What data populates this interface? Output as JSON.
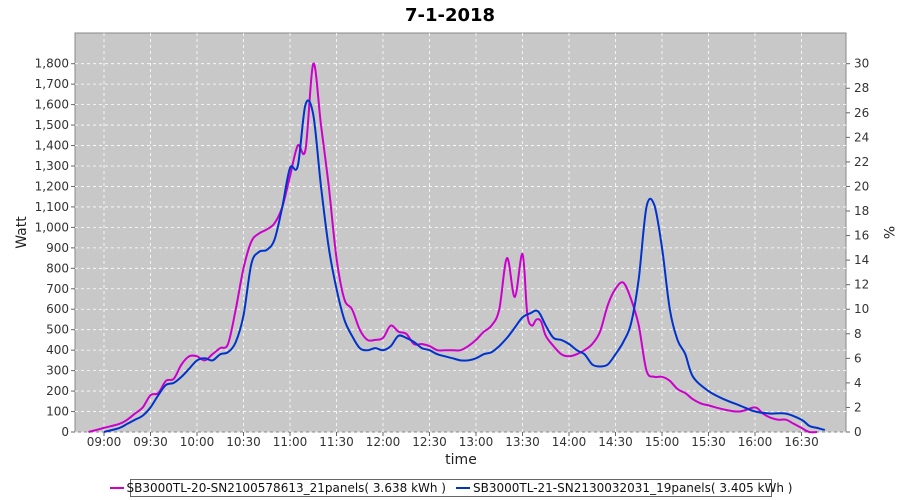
{
  "chart_data": {
    "type": "line",
    "title": "7-1-2018",
    "xlabel": "time",
    "ylabel": "Watt",
    "y2label": "%",
    "ylim": [
      0,
      1950
    ],
    "y2lim": [
      0,
      32.5
    ],
    "x_ticks": [
      "09:00",
      "09:30",
      "10:00",
      "10:30",
      "11:00",
      "11:30",
      "12:00",
      "12:30",
      "13:00",
      "13:30",
      "14:00",
      "14:30",
      "15:00",
      "15:30",
      "16:00",
      "16:30"
    ],
    "y_ticks": [
      0,
      100,
      200,
      300,
      400,
      500,
      600,
      700,
      800,
      900,
      1000,
      1100,
      1200,
      1300,
      1400,
      1500,
      1600,
      1700,
      1800
    ],
    "y_tick_labels": [
      "0",
      "100",
      "200",
      "300",
      "400",
      "500",
      "600",
      "700",
      "800",
      "900",
      "1,000",
      "1,100",
      "1,200",
      "1,300",
      "1,400",
      "1,500",
      "1,600",
      "1,700",
      "1,800"
    ],
    "y2_ticks": [
      "0",
      "2",
      "4",
      "6",
      "8",
      "10",
      "12",
      "14",
      "16",
      "18",
      "20",
      "22",
      "24",
      "26",
      "28",
      "30"
    ],
    "grid": true,
    "legend_position": "bottom",
    "background_color": "#c8c8c8",
    "series": [
      {
        "name": "SB3000TL-20-SN2100578613_21panels( 3.638 kWh )",
        "color": "#cc00cc",
        "x": [
          "08:50",
          "09:00",
          "09:10",
          "09:15",
          "09:20",
          "09:25",
          "09:30",
          "09:35",
          "09:40",
          "09:45",
          "09:50",
          "09:55",
          "10:00",
          "10:05",
          "10:10",
          "10:15",
          "10:20",
          "10:25",
          "10:30",
          "10:35",
          "10:40",
          "10:45",
          "10:50",
          "10:55",
          "11:00",
          "11:05",
          "11:10",
          "11:15",
          "11:20",
          "11:25",
          "11:30",
          "11:35",
          "11:40",
          "11:45",
          "11:50",
          "11:55",
          "12:00",
          "12:05",
          "12:10",
          "12:15",
          "12:20",
          "12:25",
          "12:30",
          "12:35",
          "12:40",
          "12:45",
          "12:50",
          "12:55",
          "13:00",
          "13:05",
          "13:10",
          "13:15",
          "13:20",
          "13:25",
          "13:30",
          "13:33",
          "13:36",
          "13:39",
          "13:42",
          "13:45",
          "13:50",
          "13:55",
          "14:00",
          "14:05",
          "14:10",
          "14:15",
          "14:20",
          "14:25",
          "14:30",
          "14:35",
          "14:40",
          "14:45",
          "14:50",
          "14:55",
          "15:00",
          "15:05",
          "15:10",
          "15:15",
          "15:20",
          "15:25",
          "15:30",
          "15:40",
          "15:50",
          "16:00",
          "16:05",
          "16:10",
          "16:15",
          "16:20",
          "16:25",
          "16:30",
          "16:35",
          "16:40"
        ],
        "y": [
          0,
          20,
          40,
          60,
          90,
          120,
          180,
          190,
          250,
          260,
          330,
          370,
          370,
          350,
          380,
          410,
          430,
          600,
          800,
          930,
          970,
          990,
          1020,
          1100,
          1250,
          1400,
          1380,
          1800,
          1500,
          1200,
          850,
          650,
          600,
          500,
          450,
          450,
          460,
          520,
          490,
          480,
          430,
          430,
          420,
          400,
          400,
          400,
          400,
          420,
          450,
          490,
          520,
          600,
          850,
          660,
          870,
          580,
          520,
          550,
          540,
          470,
          420,
          380,
          370,
          380,
          400,
          430,
          490,
          620,
          700,
          730,
          650,
          520,
          300,
          270,
          270,
          250,
          210,
          190,
          160,
          140,
          130,
          110,
          100,
          120,
          90,
          70,
          60,
          60,
          40,
          20,
          0,
          0
        ]
      },
      {
        "name": "SB3000TL-21-SN2130032031_19panels( 3.405 kWh )",
        "color": "#0033cc",
        "x": [
          "09:00",
          "09:10",
          "09:15",
          "09:20",
          "09:25",
          "09:30",
          "09:35",
          "09:40",
          "09:45",
          "09:50",
          "09:55",
          "10:00",
          "10:05",
          "10:10",
          "10:15",
          "10:20",
          "10:25",
          "10:30",
          "10:35",
          "10:40",
          "10:45",
          "10:50",
          "10:55",
          "11:00",
          "11:05",
          "11:10",
          "11:15",
          "11:20",
          "11:25",
          "11:30",
          "11:35",
          "11:40",
          "11:45",
          "11:50",
          "11:55",
          "12:00",
          "12:05",
          "12:10",
          "12:15",
          "12:20",
          "12:25",
          "12:30",
          "12:35",
          "12:40",
          "12:45",
          "12:50",
          "12:55",
          "13:00",
          "13:05",
          "13:10",
          "13:15",
          "13:20",
          "13:25",
          "13:30",
          "13:35",
          "13:40",
          "13:45",
          "13:50",
          "13:55",
          "14:00",
          "14:05",
          "14:10",
          "14:15",
          "14:20",
          "14:25",
          "14:30",
          "14:35",
          "14:40",
          "14:45",
          "14:50",
          "14:55",
          "15:00",
          "15:05",
          "15:10",
          "15:15",
          "15:20",
          "15:30",
          "15:40",
          "15:50",
          "16:00",
          "16:10",
          "16:20",
          "16:30",
          "16:35",
          "16:40",
          "16:45"
        ],
        "y": [
          0,
          20,
          40,
          60,
          80,
          120,
          180,
          230,
          240,
          270,
          310,
          350,
          360,
          350,
          380,
          390,
          440,
          570,
          820,
          880,
          890,
          940,
          1100,
          1290,
          1300,
          1600,
          1550,
          1200,
          900,
          700,
          550,
          470,
          410,
          400,
          410,
          400,
          420,
          470,
          460,
          440,
          410,
          400,
          380,
          370,
          360,
          350,
          350,
          360,
          380,
          390,
          420,
          460,
          510,
          560,
          580,
          590,
          520,
          460,
          450,
          430,
          400,
          380,
          330,
          320,
          330,
          380,
          440,
          530,
          750,
          1100,
          1110,
          900,
          600,
          450,
          380,
          270,
          200,
          160,
          130,
          100,
          90,
          90,
          60,
          30,
          20,
          10
        ]
      }
    ]
  }
}
